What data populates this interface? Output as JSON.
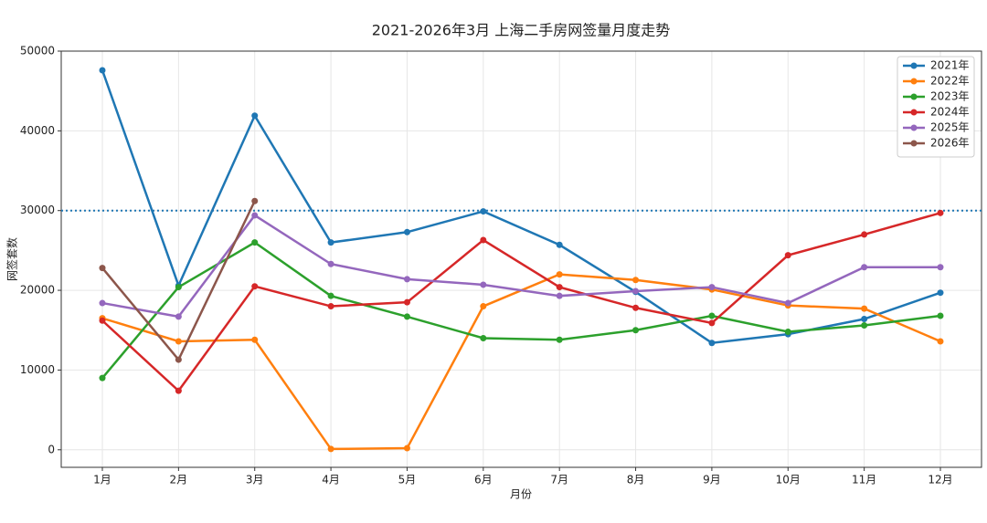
{
  "chart_data": {
    "type": "line",
    "title": "2021-2026年3月 上海二手房网签量月度走势",
    "xlabel": "月份",
    "ylabel": "网签套数",
    "categories": [
      "1月",
      "2月",
      "3月",
      "4月",
      "5月",
      "6月",
      "7月",
      "8月",
      "9月",
      "10月",
      "11月",
      "12月"
    ],
    "series": [
      {
        "name": "2021年",
        "color": "#1f77b4",
        "values": [
          47600,
          20600,
          41900,
          26000,
          27300,
          29900,
          25700,
          19800,
          13400,
          14500,
          16400,
          19700
        ]
      },
      {
        "name": "2022年",
        "color": "#ff7f0e",
        "values": [
          16500,
          13600,
          13800,
          100,
          200,
          18000,
          22000,
          21300,
          20100,
          18100,
          17700,
          13600
        ]
      },
      {
        "name": "2023年",
        "color": "#2ca02c",
        "values": [
          9000,
          20400,
          26000,
          19300,
          16700,
          14000,
          13800,
          15000,
          16800,
          14800,
          15600,
          16800
        ]
      },
      {
        "name": "2024年",
        "color": "#d62728",
        "values": [
          16200,
          7400,
          20500,
          18000,
          18500,
          26300,
          20400,
          17800,
          15900,
          24400,
          27000,
          29700
        ]
      },
      {
        "name": "2025年",
        "color": "#9467bd",
        "values": [
          18400,
          16700,
          29400,
          23300,
          21400,
          20700,
          19300,
          19900,
          20400,
          18400,
          22900,
          22900
        ]
      },
      {
        "name": "2026年",
        "color": "#8c564b",
        "values": [
          22800,
          11300,
          31200,
          null,
          null,
          null,
          null,
          null,
          null,
          null,
          null,
          null
        ]
      }
    ],
    "reference_line": {
      "value": 30000,
      "color": "#1f77b4"
    },
    "ylim": [
      -2200,
      50000
    ],
    "yticks": [
      0,
      10000,
      20000,
      30000,
      40000,
      50000
    ],
    "grid": true,
    "legend": "upper right"
  }
}
